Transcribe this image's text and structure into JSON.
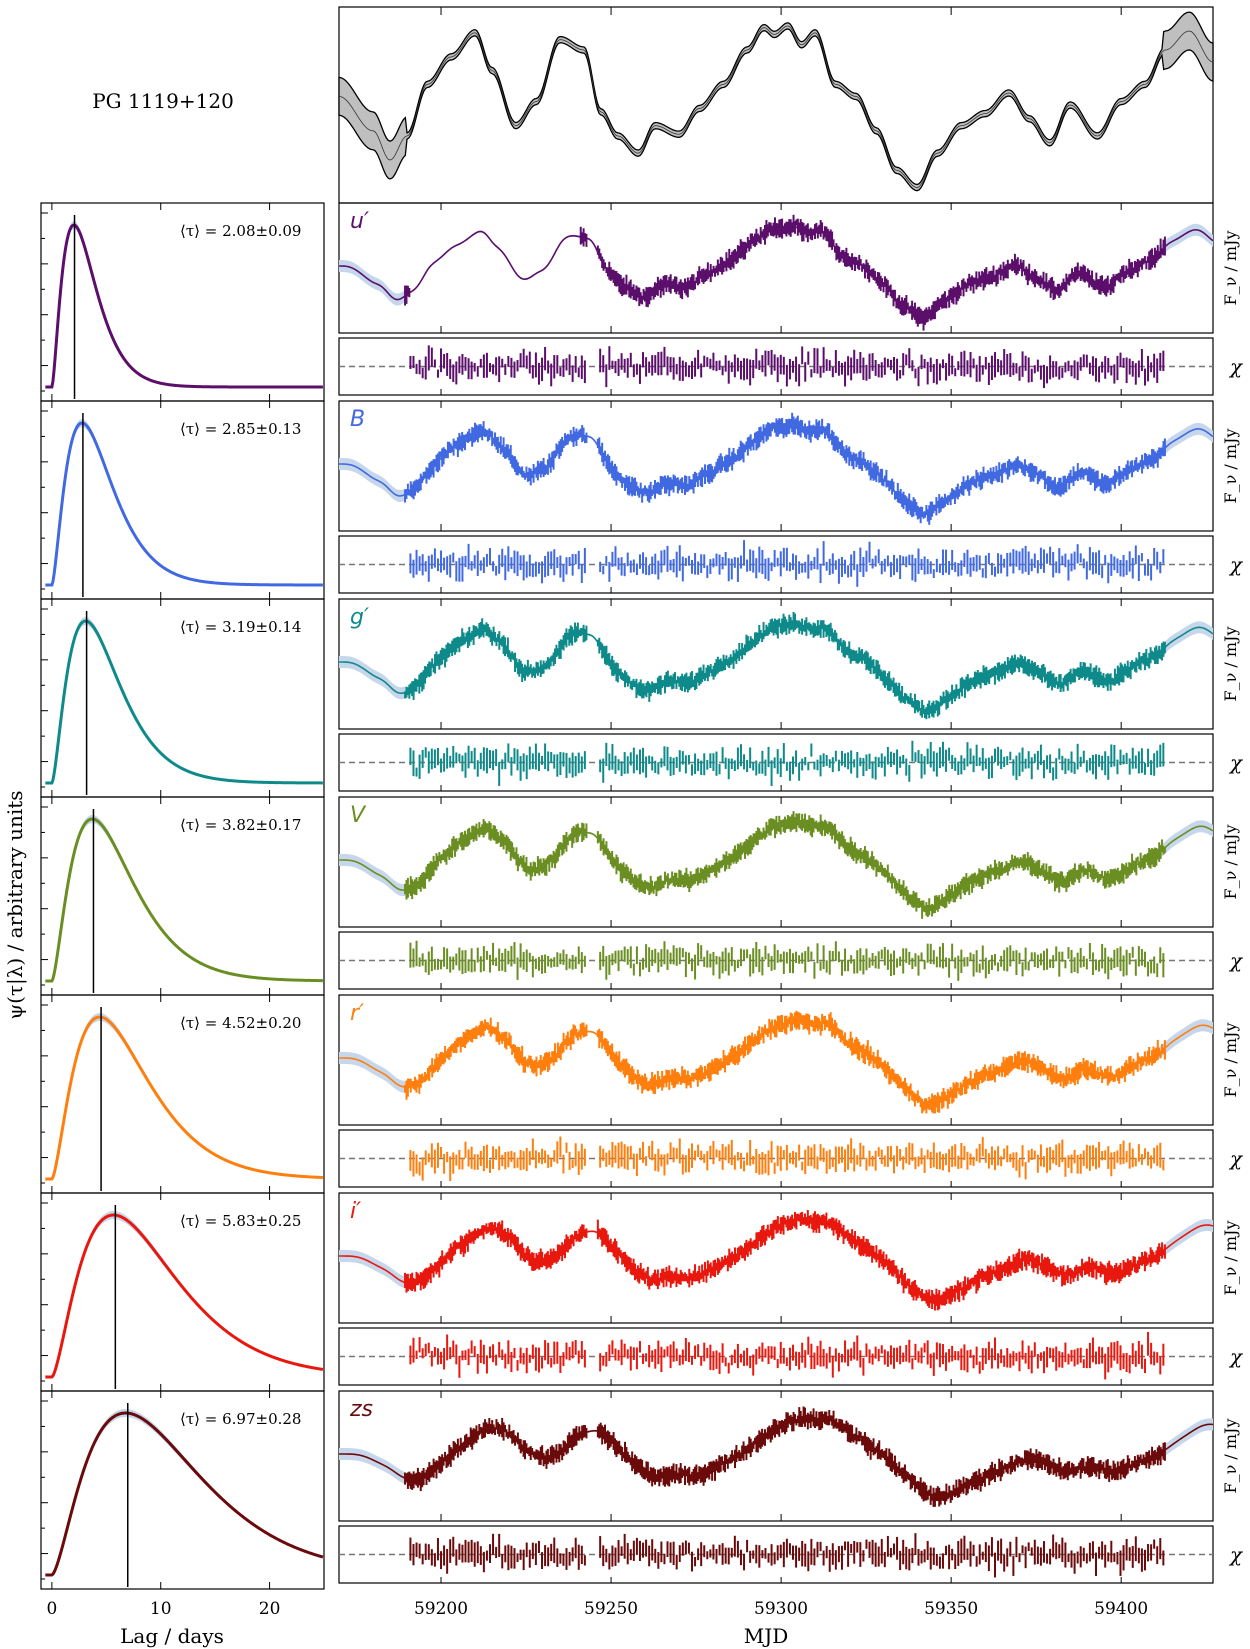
{
  "figure": {
    "object_name": "PG 1119+120",
    "left_ylabel": "ψ(τ|λ) / arbitrary units",
    "left_xlabel": "Lag / days",
    "right_xlabel": "MJD",
    "flux_label": "F_ν / mJy",
    "chi_label": "χ",
    "colors": {
      "u": "#5b0f6b",
      "B": "#4169e1",
      "g": "#0f8a8a",
      "V": "#6b8e23",
      "r": "#ff7f0e",
      "i": "#e8180e",
      "z": "#6b0a0a",
      "band": "#c6d7ec",
      "driver_band": "#bfbfbf"
    }
  },
  "chart_data": [
    {
      "type": "line",
      "name": "driving_light_curve",
      "title": "",
      "xlim": [
        59170,
        59427
      ],
      "x": [
        59170,
        59180,
        59185,
        59190,
        59196,
        59203,
        59210,
        59215,
        59222,
        59228,
        59235,
        59242,
        59247,
        59252,
        59258,
        59263,
        59270,
        59276,
        59283,
        59290,
        59295,
        59298,
        59302,
        59306,
        59310,
        59316,
        59322,
        59328,
        59334,
        59340,
        59346,
        59353,
        59360,
        59367,
        59373,
        59379,
        59385,
        59393,
        59400,
        59407,
        59413,
        59420,
        59427
      ],
      "y": [
        0.55,
        0.35,
        0.18,
        0.32,
        0.62,
        0.78,
        0.92,
        0.7,
        0.38,
        0.52,
        0.88,
        0.82,
        0.46,
        0.32,
        0.22,
        0.38,
        0.33,
        0.48,
        0.62,
        0.82,
        0.95,
        0.91,
        0.96,
        0.85,
        0.92,
        0.62,
        0.55,
        0.35,
        0.12,
        0.02,
        0.22,
        0.38,
        0.45,
        0.57,
        0.42,
        0.28,
        0.5,
        0.32,
        0.52,
        0.62,
        0.82,
        0.93,
        0.75
      ]
    },
    {
      "type": "line",
      "name": "lag_distributions",
      "xlabel": "Lag / days",
      "ylabel": "ψ(τ|λ) / arbitrary units",
      "xlim": [
        -1,
        25
      ],
      "x_ticks": [
        0,
        10,
        20
      ],
      "series": [
        {
          "band": "u′",
          "mean_lag": 2.08,
          "err": 0.09,
          "annotation": "⟨τ⟩ = 2.08±0.09",
          "color_key": "u"
        },
        {
          "band": "B",
          "mean_lag": 2.85,
          "err": 0.13,
          "annotation": "⟨τ⟩ = 2.85±0.13",
          "color_key": "B"
        },
        {
          "band": "g′",
          "mean_lag": 3.19,
          "err": 0.14,
          "annotation": "⟨τ⟩ = 3.19±0.14",
          "color_key": "g"
        },
        {
          "band": "V",
          "mean_lag": 3.82,
          "err": 0.17,
          "annotation": "⟨τ⟩ = 3.82±0.17",
          "color_key": "V"
        },
        {
          "band": "r′",
          "mean_lag": 4.52,
          "err": 0.2,
          "annotation": "⟨τ⟩ = 4.52±0.20",
          "color_key": "r"
        },
        {
          "band": "i′",
          "mean_lag": 5.83,
          "err": 0.25,
          "annotation": "⟨τ⟩ = 5.83±0.25",
          "color_key": "i"
        },
        {
          "band": "zs",
          "mean_lag": 6.97,
          "err": 0.28,
          "annotation": "⟨τ⟩ = 6.97±0.28",
          "color_key": "z"
        }
      ]
    },
    {
      "type": "line",
      "name": "band_light_curves",
      "xlabel": "MJD",
      "xlim": [
        59170,
        59427
      ],
      "x_ticks": [
        59200,
        59250,
        59300,
        59350,
        59400
      ],
      "panels": [
        {
          "label": "u′",
          "color_key": "u"
        },
        {
          "label": "B",
          "color_key": "B"
        },
        {
          "label": "g′",
          "color_key": "g"
        },
        {
          "label": "V",
          "color_key": "V"
        },
        {
          "label": "r′",
          "color_key": "r"
        },
        {
          "label": "i′",
          "color_key": "i"
        },
        {
          "label": "zs",
          "color_key": "z"
        }
      ]
    }
  ]
}
